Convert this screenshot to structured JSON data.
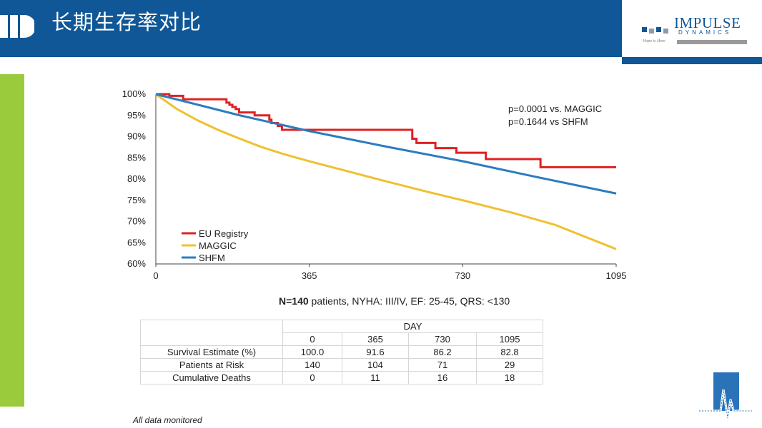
{
  "slide": {
    "title": "长期生存率对比",
    "brand_name": "IMPULSE",
    "brand_sub": "DYNAMICS",
    "brand_tag": "Hope is Here",
    "footnote": "All data monitored"
  },
  "colors": {
    "header": "#0f5796",
    "accent": "#9acb3c",
    "eu": "#e02020",
    "maggic": "#f0c030",
    "shfm": "#2c7cbf"
  },
  "chart_data": {
    "type": "line",
    "title": "",
    "xlabel": "",
    "ylabel": "",
    "xlim": [
      0,
      1095
    ],
    "ylim": [
      60,
      100
    ],
    "x_ticks": [
      0,
      365,
      730,
      1095
    ],
    "y_ticks": [
      60,
      65,
      70,
      75,
      80,
      85,
      90,
      95,
      100
    ],
    "y_tick_labels": [
      "60%",
      "65%",
      "70%",
      "75%",
      "80%",
      "85%",
      "90%",
      "95%",
      "100%"
    ],
    "grid": false,
    "legend_position": "bottom-left",
    "annotations": [
      "p=0.0001 vs. MAGGIC",
      "p=0.1644 vs SHFM"
    ],
    "series": [
      {
        "name": "EU Registry",
        "color": "#e02020",
        "step": true,
        "x": [
          0,
          32,
          65,
          168,
          175,
          182,
          190,
          198,
          235,
          270,
          275,
          290,
          300,
          605,
          610,
          620,
          665,
          715,
          785,
          915,
          1095
        ],
        "y": [
          100,
          99.6,
          98.8,
          98.0,
          97.5,
          97.0,
          96.5,
          95.7,
          95.0,
          94.0,
          93.2,
          92.5,
          91.6,
          91.6,
          89.5,
          88.5,
          87.3,
          86.2,
          84.7,
          82.8,
          82.8
        ]
      },
      {
        "name": "MAGGIC",
        "color": "#f0c030",
        "step": false,
        "x": [
          0,
          50,
          100,
          150,
          200,
          250,
          300,
          365,
          450,
          550,
          650,
          730,
          850,
          950,
          1095
        ],
        "y": [
          100,
          96.5,
          93.8,
          91.5,
          89.5,
          87.6,
          86.0,
          84.2,
          82.0,
          79.4,
          76.9,
          75.0,
          72.0,
          69.2,
          63.5
        ]
      },
      {
        "name": "SHFM",
        "color": "#2c7cbf",
        "step": false,
        "x": [
          0,
          200,
          365,
          550,
          730,
          900,
          1095
        ],
        "y": [
          100,
          95.0,
          91.3,
          87.6,
          84.2,
          80.6,
          76.6
        ]
      }
    ]
  },
  "summary": {
    "bold": "N=140",
    "rest": " patients, NYHA: III/IV,  EF: 25-45, QRS: <130"
  },
  "table": {
    "group_header": "DAY",
    "columns": [
      "0",
      "365",
      "730",
      "1095"
    ],
    "rows": [
      {
        "label": "Survival Estimate (%)",
        "values": [
          "100.0",
          "91.6",
          "86.2",
          "82.8"
        ]
      },
      {
        "label": "Patients at Risk",
        "values": [
          "140",
          "104",
          "71",
          "29"
        ]
      },
      {
        "label": "Cumulative Deaths",
        "values": [
          "0",
          "11",
          "16",
          "18"
        ]
      }
    ]
  }
}
